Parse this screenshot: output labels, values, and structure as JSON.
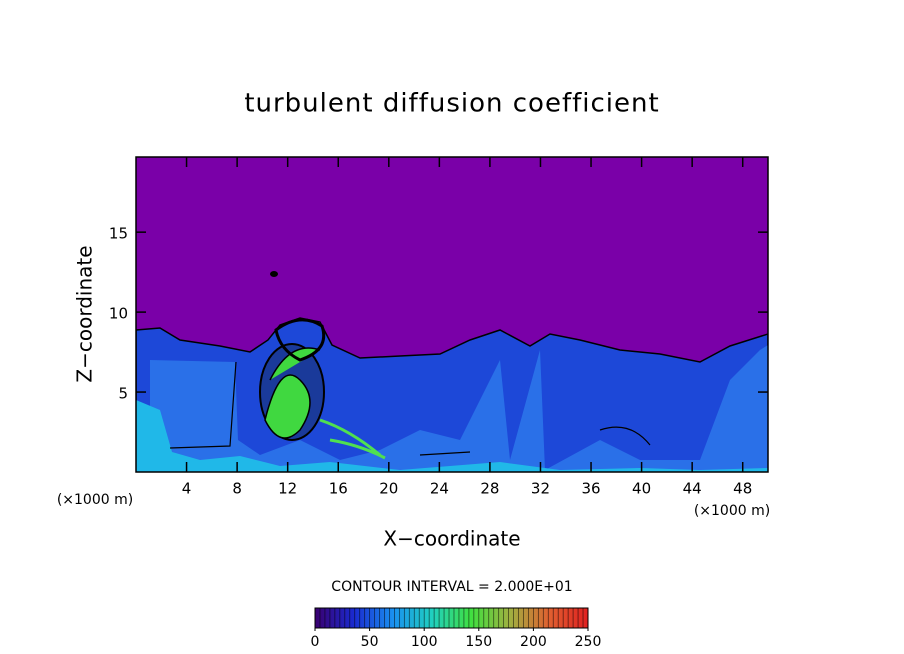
{
  "chart_data": {
    "type": "contour",
    "title": "turbulent diffusion coefficient",
    "x_label": "X−coordinate",
    "y_label": "Z−coordinate",
    "x_unit": "(×1000 m)",
    "y_unit": "(×1000 m)",
    "xlim": [
      0,
      50
    ],
    "ylim": [
      0,
      19.7
    ],
    "xticks": [
      4,
      8,
      12,
      16,
      20,
      24,
      28,
      32,
      36,
      40,
      44,
      48
    ],
    "yticks": [
      5,
      10,
      15
    ],
    "background_color": "#7a00a8",
    "colorbar": {
      "label": "CONTOUR INTERVAL = 2.000E+01",
      "lim": [
        0,
        250
      ],
      "ticks": [
        0,
        50,
        100,
        150,
        200,
        250
      ],
      "colors": [
        "#3a0070",
        "#1a2ad0",
        "#1a90f0",
        "#20d0c0",
        "#40e040",
        "#a0b040",
        "#e06030",
        "#e02020"
      ]
    }
  }
}
